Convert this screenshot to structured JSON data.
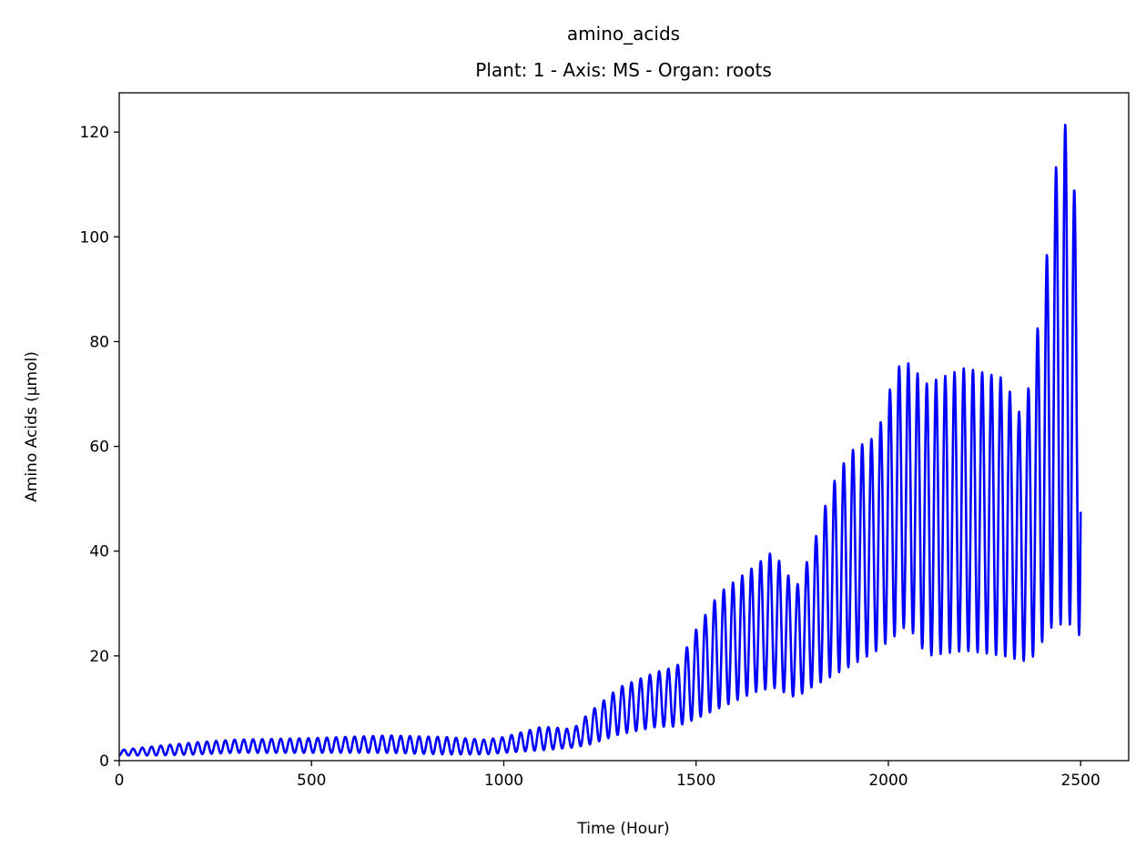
{
  "chart_data": {
    "type": "line",
    "title": "amino_acids",
    "subtitle": "Plant: 1 - Axis: MS - Organ: roots",
    "xlabel": "Time (Hour)",
    "ylabel": "Amino Acids (µmol)",
    "xlim": [
      0,
      2625
    ],
    "ylim": [
      0,
      127.5
    ],
    "xticks": [
      0,
      500,
      1000,
      1500,
      2000,
      2500
    ],
    "yticks": [
      0,
      20,
      40,
      60,
      80,
      100,
      120
    ],
    "grid": false,
    "legend": false,
    "series": [
      {
        "color": "#0000ff",
        "oscillation_period_hours": 24,
        "envelope": [
          {
            "t": 0,
            "min": 1.0,
            "max": 2.0
          },
          {
            "t": 100,
            "min": 1.0,
            "max": 2.8
          },
          {
            "t": 200,
            "min": 1.2,
            "max": 3.5
          },
          {
            "t": 300,
            "min": 1.5,
            "max": 4.0
          },
          {
            "t": 500,
            "min": 1.5,
            "max": 4.3
          },
          {
            "t": 700,
            "min": 1.5,
            "max": 4.8
          },
          {
            "t": 850,
            "min": 1.2,
            "max": 4.5
          },
          {
            "t": 950,
            "min": 1.2,
            "max": 4.0
          },
          {
            "t": 1000,
            "min": 1.5,
            "max": 4.5
          },
          {
            "t": 1100,
            "min": 2.0,
            "max": 6.5
          },
          {
            "t": 1180,
            "min": 2.5,
            "max": 6.0
          },
          {
            "t": 1220,
            "min": 3.0,
            "max": 9.0
          },
          {
            "t": 1300,
            "min": 5.0,
            "max": 14.0
          },
          {
            "t": 1400,
            "min": 6.5,
            "max": 17.0
          },
          {
            "t": 1450,
            "min": 6.5,
            "max": 18.0
          },
          {
            "t": 1500,
            "min": 8.0,
            "max": 25.0
          },
          {
            "t": 1560,
            "min": 10.0,
            "max": 32.0
          },
          {
            "t": 1650,
            "min": 13.0,
            "max": 37.0
          },
          {
            "t": 1700,
            "min": 14.0,
            "max": 40.0
          },
          {
            "t": 1760,
            "min": 12.0,
            "max": 33.0
          },
          {
            "t": 1800,
            "min": 14.0,
            "max": 40.0
          },
          {
            "t": 1850,
            "min": 16.0,
            "max": 52.0
          },
          {
            "t": 1900,
            "min": 18.0,
            "max": 59.0
          },
          {
            "t": 1970,
            "min": 21.0,
            "max": 62.0
          },
          {
            "t": 2020,
            "min": 24.0,
            "max": 75.0
          },
          {
            "t": 2050,
            "min": 26.0,
            "max": 76.0
          },
          {
            "t": 2100,
            "min": 20.0,
            "max": 72.0
          },
          {
            "t": 2200,
            "min": 21.0,
            "max": 75.0
          },
          {
            "t": 2300,
            "min": 20.0,
            "max": 73.0
          },
          {
            "t": 2350,
            "min": 19.0,
            "max": 65.0
          },
          {
            "t": 2380,
            "min": 20.0,
            "max": 78.0
          },
          {
            "t": 2410,
            "min": 24.0,
            "max": 95.0
          },
          {
            "t": 2430,
            "min": 26.0,
            "max": 110.0
          },
          {
            "t": 2450,
            "min": 26.0,
            "max": 121.0
          },
          {
            "t": 2475,
            "min": 26.0,
            "max": 122.0
          },
          {
            "t": 2490,
            "min": 24.0,
            "max": 100.0
          },
          {
            "t": 2500,
            "min": 24.0,
            "max": 118.0
          }
        ]
      }
    ]
  }
}
